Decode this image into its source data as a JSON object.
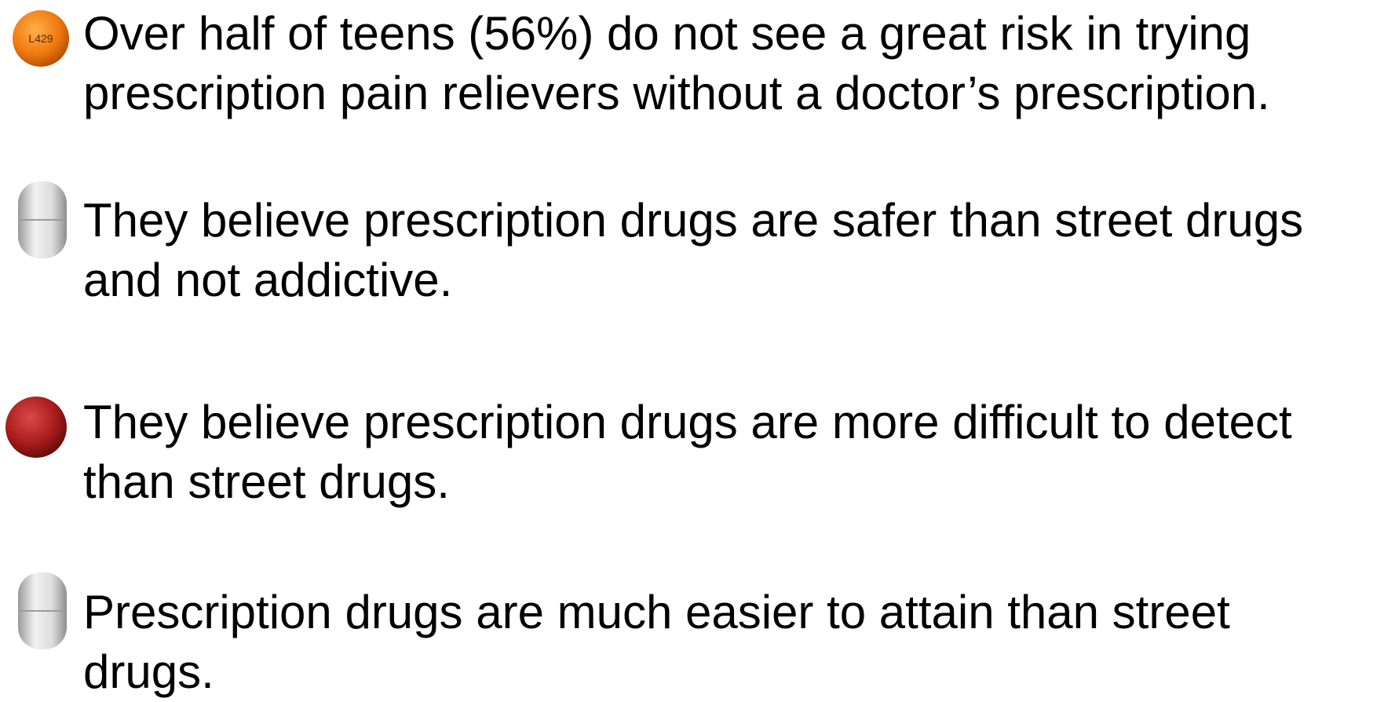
{
  "items": [
    {
      "lines": [
        "Over half of teens (56%) do not see a great risk in trying",
        "prescription pain relievers without a doctor’s prescription."
      ],
      "icon_imprint": "L429"
    },
    {
      "lines": [
        "They believe prescription drugs are safer than street drugs",
        "and not addictive."
      ]
    },
    {
      "lines": [
        "They believe prescription drugs are more difficult to detect",
        "than street drugs."
      ]
    },
    {
      "lines": [
        "Prescription drugs are much easier to attain than street",
        "drugs."
      ]
    }
  ]
}
